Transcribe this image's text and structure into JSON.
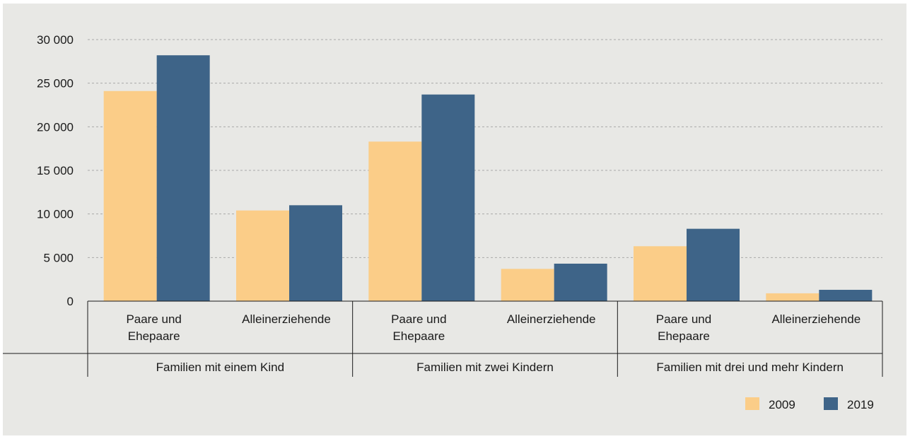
{
  "chart_data": {
    "type": "bar",
    "title": "",
    "xlabel": "",
    "ylabel": "",
    "ylim": [
      0,
      30000
    ],
    "yticks": [
      {
        "value": 0,
        "label": "0"
      },
      {
        "value": 5000,
        "label": "5 000"
      },
      {
        "value": 10000,
        "label": "10 000"
      },
      {
        "value": 15000,
        "label": "15 000"
      },
      {
        "value": 20000,
        "label": "20 000"
      },
      {
        "value": 25000,
        "label": "25 000"
      },
      {
        "value": 30000,
        "label": "30 000"
      }
    ],
    "grid": true,
    "groups": [
      {
        "label": "Familien mit einem Kind",
        "categories": [
          [
            "Paare und",
            "Ehepaare"
          ],
          [
            "Alleinerziehende"
          ]
        ]
      },
      {
        "label": "Familien mit zwei Kindern",
        "categories": [
          [
            "Paare und",
            "Ehepaare"
          ],
          [
            "Alleinerziehende"
          ]
        ]
      },
      {
        "label": "Familien mit drei und mehr Kindern",
        "categories": [
          [
            "Paare und",
            "Ehepaare"
          ],
          [
            "Alleinerziehende"
          ]
        ]
      }
    ],
    "series": [
      {
        "name": "2009",
        "color": "#fbcd88",
        "values": [
          24100,
          10400,
          18300,
          3700,
          6300,
          900
        ]
      },
      {
        "name": "2019",
        "color": "#3e6488",
        "values": [
          28200,
          11000,
          23700,
          4300,
          8300,
          1300
        ]
      }
    ],
    "legend_position": "bottom-right"
  }
}
